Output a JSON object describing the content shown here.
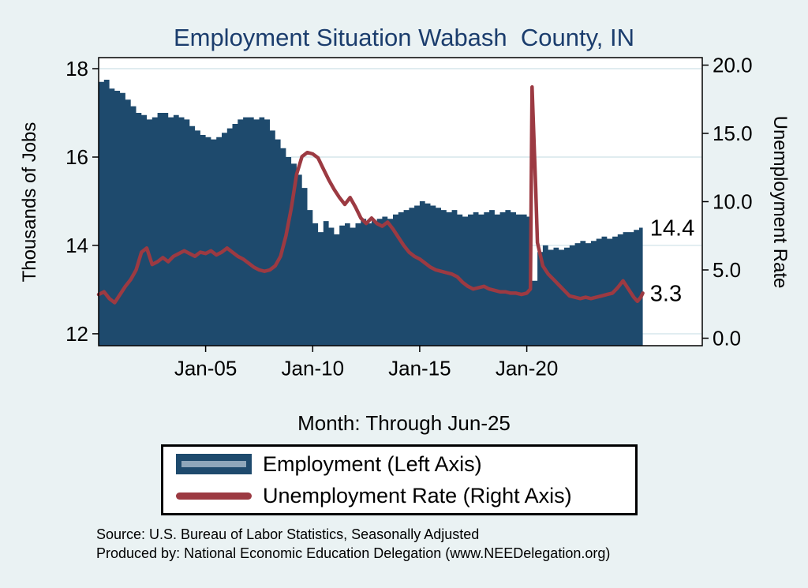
{
  "footer": {
    "source_line": "Source: U.S. Bureau of Labor Statistics, Seasonally Adjusted",
    "produced_line": "Produced by: National Economic Education Delegation (www.NEEDelegation.org)"
  },
  "colors": {
    "background": "#eaf2f3",
    "plot_background": "#ffffff",
    "title": "#1b3d6d",
    "employment": "#1e4a6d",
    "unemployment": "#9c3a42",
    "gridline": "#d6e5ec"
  },
  "chart_data": {
    "type": "area+line",
    "title": "Employment Situation Wabash  County, IN",
    "xlabel": "Month: Through Jun-25",
    "grid": true,
    "legend_position": "bottom",
    "x_range": [
      2000,
      2028.2
    ],
    "x_ticks": [
      {
        "x": 2005,
        "label": "Jan-05"
      },
      {
        "x": 2010,
        "label": "Jan-10"
      },
      {
        "x": 2015,
        "label": "Jan-15"
      },
      {
        "x": 2020,
        "label": "Jan-20"
      }
    ],
    "left_axis": {
      "label": "Thousands of Jobs",
      "range": [
        11.73,
        18.25
      ],
      "ticks": [
        {
          "v": 12,
          "label": "12"
        },
        {
          "v": 14,
          "label": "14"
        },
        {
          "v": 16,
          "label": "16"
        },
        {
          "v": 18,
          "label": "18"
        }
      ]
    },
    "right_axis": {
      "label": "Unemployment Rate",
      "range": [
        -0.55,
        20.55
      ],
      "ticks": [
        {
          "v": 0,
          "label": "0.0"
        },
        {
          "v": 5,
          "label": "5.0"
        },
        {
          "v": 10,
          "label": "10.0"
        },
        {
          "v": 15,
          "label": "15.0"
        },
        {
          "v": 20,
          "label": "20.0"
        }
      ]
    },
    "series": [
      {
        "name": "Employment (Left Axis)",
        "type": "area",
        "axis": "left",
        "color": "#1e4a6d",
        "x": [
          2000,
          2000.25,
          2000.5,
          2000.75,
          2001,
          2001.25,
          2001.5,
          2001.75,
          2002,
          2002.25,
          2002.5,
          2002.75,
          2003,
          2003.25,
          2003.5,
          2003.75,
          2004,
          2004.25,
          2004.5,
          2004.75,
          2005,
          2005.25,
          2005.5,
          2005.75,
          2006,
          2006.25,
          2006.5,
          2006.75,
          2007,
          2007.25,
          2007.5,
          2007.75,
          2008,
          2008.25,
          2008.5,
          2008.75,
          2009,
          2009.25,
          2009.5,
          2009.75,
          2010,
          2010.25,
          2010.5,
          2010.75,
          2011,
          2011.25,
          2011.5,
          2011.75,
          2012,
          2012.25,
          2012.5,
          2012.75,
          2013,
          2013.25,
          2013.5,
          2013.75,
          2014,
          2014.25,
          2014.5,
          2014.75,
          2015,
          2015.25,
          2015.5,
          2015.75,
          2016,
          2016.25,
          2016.5,
          2016.75,
          2017,
          2017.25,
          2017.5,
          2017.75,
          2018,
          2018.25,
          2018.5,
          2018.75,
          2019,
          2019.25,
          2019.5,
          2019.75,
          2020,
          2020.25,
          2020.5,
          2020.75,
          2021,
          2021.25,
          2021.5,
          2021.75,
          2022,
          2022.25,
          2022.5,
          2022.75,
          2023,
          2023.25,
          2023.5,
          2023.75,
          2024,
          2024.25,
          2024.5,
          2024.75,
          2025,
          2025.25,
          2025.42
        ],
        "values": [
          17.7,
          17.75,
          17.55,
          17.5,
          17.45,
          17.3,
          17.15,
          17.0,
          16.95,
          16.85,
          16.9,
          17.0,
          17.0,
          16.9,
          16.95,
          16.9,
          16.85,
          16.7,
          16.6,
          16.5,
          16.45,
          16.4,
          16.45,
          16.55,
          16.65,
          16.75,
          16.85,
          16.9,
          16.9,
          16.85,
          16.9,
          16.85,
          16.6,
          16.4,
          16.2,
          16.0,
          15.85,
          15.6,
          15.3,
          14.8,
          14.5,
          14.3,
          14.55,
          14.4,
          14.25,
          14.45,
          14.5,
          14.4,
          14.5,
          14.6,
          14.5,
          14.55,
          14.6,
          14.65,
          14.6,
          14.7,
          14.75,
          14.8,
          14.85,
          14.9,
          15.0,
          14.95,
          14.9,
          14.85,
          14.8,
          14.75,
          14.8,
          14.7,
          14.65,
          14.7,
          14.75,
          14.7,
          14.75,
          14.8,
          14.7,
          14.75,
          14.8,
          14.75,
          14.7,
          14.7,
          14.65,
          13.2,
          13.85,
          14.0,
          13.9,
          13.95,
          13.9,
          13.95,
          14.0,
          14.05,
          14.1,
          14.05,
          14.1,
          14.15,
          14.2,
          14.15,
          14.2,
          14.25,
          14.3,
          14.3,
          14.35,
          14.4,
          14.4
        ]
      },
      {
        "name": "Unemployment Rate (Right Axis)",
        "type": "line",
        "axis": "right",
        "color": "#9c3a42",
        "x": [
          2000,
          2000.25,
          2000.5,
          2000.75,
          2001,
          2001.25,
          2001.5,
          2001.75,
          2002,
          2002.25,
          2002.5,
          2002.75,
          2003,
          2003.25,
          2003.5,
          2003.75,
          2004,
          2004.25,
          2004.5,
          2004.75,
          2005,
          2005.25,
          2005.5,
          2005.75,
          2006,
          2006.25,
          2006.5,
          2006.75,
          2007,
          2007.25,
          2007.5,
          2007.75,
          2008,
          2008.25,
          2008.5,
          2008.75,
          2009,
          2009.25,
          2009.5,
          2009.75,
          2010,
          2010.25,
          2010.5,
          2010.75,
          2011,
          2011.25,
          2011.5,
          2011.75,
          2012,
          2012.25,
          2012.5,
          2012.75,
          2013,
          2013.25,
          2013.5,
          2013.75,
          2014,
          2014.25,
          2014.5,
          2014.75,
          2015,
          2015.25,
          2015.5,
          2015.75,
          2016,
          2016.25,
          2016.5,
          2016.75,
          2017,
          2017.25,
          2017.5,
          2017.75,
          2018,
          2018.25,
          2018.5,
          2018.75,
          2019,
          2019.25,
          2019.5,
          2019.75,
          2020,
          2020.17,
          2020.25,
          2020.42,
          2020.5,
          2020.75,
          2021,
          2021.25,
          2021.5,
          2021.75,
          2022,
          2022.25,
          2022.5,
          2022.75,
          2023,
          2023.25,
          2023.5,
          2023.75,
          2024,
          2024.25,
          2024.5,
          2024.75,
          2025,
          2025.17,
          2025.33,
          2025.42
        ],
        "values": [
          3.2,
          3.4,
          2.9,
          2.6,
          3.2,
          3.8,
          4.3,
          5.0,
          6.3,
          6.6,
          5.4,
          5.6,
          5.9,
          5.6,
          6.0,
          6.2,
          6.4,
          6.2,
          6.0,
          6.3,
          6.2,
          6.4,
          6.1,
          6.3,
          6.6,
          6.3,
          6.0,
          5.8,
          5.5,
          5.2,
          5.0,
          4.9,
          5.0,
          5.3,
          6.0,
          7.5,
          9.5,
          12.0,
          13.3,
          13.6,
          13.5,
          13.2,
          12.4,
          11.6,
          10.9,
          10.3,
          9.8,
          10.3,
          9.6,
          8.8,
          8.4,
          8.8,
          8.4,
          8.2,
          8.5,
          8.0,
          7.4,
          6.8,
          6.3,
          6.0,
          5.8,
          5.5,
          5.2,
          5.0,
          4.9,
          4.8,
          4.7,
          4.5,
          4.1,
          3.8,
          3.6,
          3.7,
          3.8,
          3.6,
          3.5,
          3.4,
          3.4,
          3.3,
          3.3,
          3.2,
          3.3,
          3.6,
          18.4,
          11.0,
          7.0,
          5.3,
          4.7,
          4.3,
          3.9,
          3.5,
          3.1,
          3.0,
          2.9,
          3.0,
          2.9,
          3.0,
          3.1,
          3.2,
          3.3,
          3.7,
          4.2,
          3.6,
          3.0,
          2.7,
          3.0,
          3.3
        ]
      }
    ],
    "annotations": [
      {
        "text": "14.4",
        "x": 2025.65,
        "y": 14.4,
        "axis": "left"
      },
      {
        "text": "3.3",
        "x": 2025.65,
        "y": 3.3,
        "axis": "right"
      }
    ],
    "legend": {
      "entries": [
        {
          "swatch": "area",
          "label": "Employment (Left Axis)"
        },
        {
          "swatch": "line",
          "label": "Unemployment Rate (Right Axis)"
        }
      ]
    }
  }
}
